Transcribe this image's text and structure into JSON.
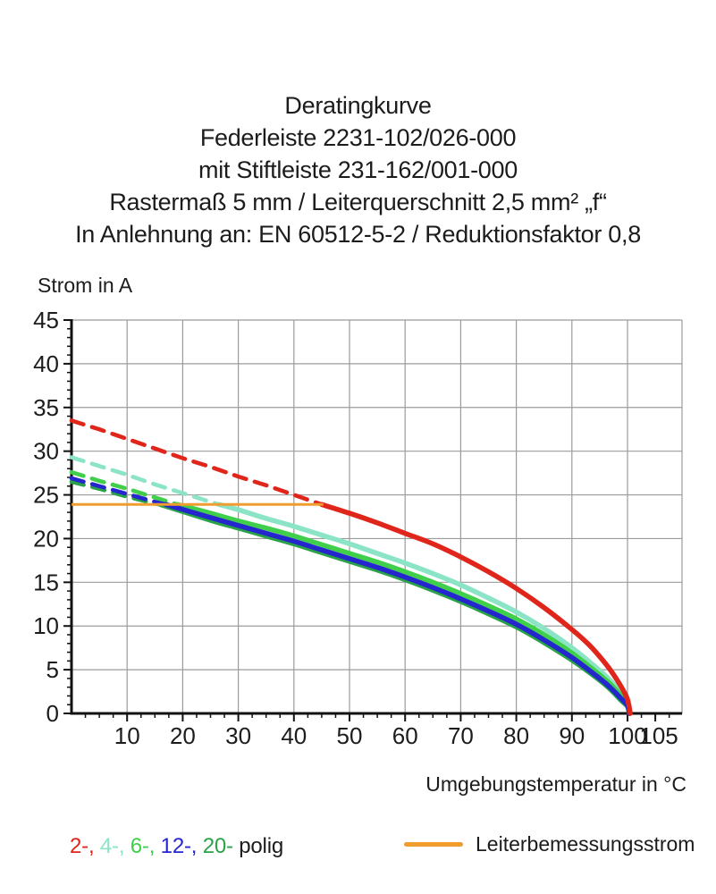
{
  "header": {
    "lines": [
      "Deratingkurve",
      "Federleiste 2231-102/026-000",
      "mit Stiftleiste 231-162/001-000",
      "Rastermaß 5 mm / Leiterquerschnitt 2,5 mm² „f“",
      "In Anlehnung an: EN 60512-5-2 / Reduktionsfaktor 0,8"
    ]
  },
  "chart_data": {
    "type": "line",
    "title": "Deratingkurve",
    "xlabel": "Umgebungstemperatur in °C",
    "ylabel": "Strom in A",
    "xlim": [
      0,
      110
    ],
    "ylim": [
      0,
      45
    ],
    "x_ticks": [
      10,
      20,
      30,
      40,
      50,
      60,
      70,
      80,
      90,
      100,
      105
    ],
    "y_ticks": [
      0,
      5,
      10,
      15,
      20,
      25,
      30,
      35,
      40,
      45
    ],
    "x_minor_step": 2.5,
    "y_minor_step": 1,
    "x_gridlines": [
      10,
      20,
      30,
      40,
      50,
      60,
      70,
      80,
      90,
      100
    ],
    "y_gridlines": [
      5,
      10,
      15,
      20,
      25,
      30,
      35,
      40,
      45
    ],
    "grid_color": "#9b9b9b",
    "axis_color": "#111111",
    "series": [
      {
        "name": "4-polig",
        "color": "#8ce4c7",
        "dash_until": 26.5,
        "points": [
          [
            0,
            29.3
          ],
          [
            5,
            28.3
          ],
          [
            10,
            27.3
          ],
          [
            15,
            26.2
          ],
          [
            20,
            25.2
          ],
          [
            26.5,
            23.9
          ],
          [
            30,
            23.3
          ],
          [
            35,
            22.3
          ],
          [
            40,
            21.4
          ],
          [
            45,
            20.4
          ],
          [
            50,
            19.4
          ],
          [
            55,
            18.3
          ],
          [
            60,
            17.2
          ],
          [
            65,
            16.0
          ],
          [
            70,
            14.7
          ],
          [
            75,
            13.2
          ],
          [
            80,
            11.6
          ],
          [
            85,
            9.7
          ],
          [
            90,
            7.5
          ],
          [
            95,
            4.9
          ],
          [
            97,
            3.7
          ],
          [
            99,
            2.2
          ],
          [
            100,
            1.3
          ],
          [
            100.4,
            0
          ]
        ]
      },
      {
        "name": "6-polig",
        "color": "#3fcf4a",
        "dash_until": 19,
        "points": [
          [
            0,
            27.6
          ],
          [
            5,
            26.6
          ],
          [
            10,
            25.7
          ],
          [
            15,
            24.7
          ],
          [
            19,
            23.9
          ],
          [
            25,
            22.9
          ],
          [
            30,
            22.0
          ],
          [
            35,
            21.2
          ],
          [
            40,
            20.3
          ],
          [
            45,
            19.3
          ],
          [
            50,
            18.3
          ],
          [
            55,
            17.3
          ],
          [
            60,
            16.2
          ],
          [
            65,
            15.0
          ],
          [
            70,
            13.7
          ],
          [
            75,
            12.3
          ],
          [
            80,
            10.8
          ],
          [
            85,
            9.0
          ],
          [
            90,
            6.9
          ],
          [
            95,
            4.4
          ],
          [
            97,
            3.3
          ],
          [
            99,
            1.9
          ],
          [
            100,
            1.1
          ],
          [
            100.4,
            0
          ]
        ]
      },
      {
        "name": "20-polig",
        "color": "#2aa348",
        "dash_until": 16,
        "points": [
          [
            0,
            26.5
          ],
          [
            5,
            25.7
          ],
          [
            10,
            24.8
          ],
          [
            15,
            24.0
          ],
          [
            16,
            23.9
          ],
          [
            25,
            22.1
          ],
          [
            30,
            21.2
          ],
          [
            35,
            20.3
          ],
          [
            40,
            19.4
          ],
          [
            45,
            18.4
          ],
          [
            50,
            17.4
          ],
          [
            55,
            16.4
          ],
          [
            60,
            15.3
          ],
          [
            65,
            14.1
          ],
          [
            70,
            12.8
          ],
          [
            75,
            11.4
          ],
          [
            80,
            9.9
          ],
          [
            85,
            8.1
          ],
          [
            90,
            6.1
          ],
          [
            95,
            3.8
          ],
          [
            97,
            2.7
          ],
          [
            99,
            1.4
          ],
          [
            100,
            0.8
          ],
          [
            100.3,
            0
          ]
        ]
      },
      {
        "name": "12-polig",
        "color": "#2526cd",
        "dash_until": 17,
        "points": [
          [
            0,
            26.9
          ],
          [
            5,
            26.0
          ],
          [
            10,
            25.1
          ],
          [
            15,
            24.2
          ],
          [
            17,
            23.9
          ],
          [
            25,
            22.4
          ],
          [
            30,
            21.5
          ],
          [
            35,
            20.6
          ],
          [
            40,
            19.7
          ],
          [
            45,
            18.7
          ],
          [
            50,
            17.7
          ],
          [
            55,
            16.7
          ],
          [
            60,
            15.6
          ],
          [
            65,
            14.4
          ],
          [
            70,
            13.1
          ],
          [
            75,
            11.7
          ],
          [
            80,
            10.2
          ],
          [
            85,
            8.4
          ],
          [
            90,
            6.4
          ],
          [
            95,
            4.0
          ],
          [
            97,
            2.9
          ],
          [
            99,
            1.6
          ],
          [
            100,
            0.9
          ],
          [
            100.35,
            0
          ]
        ]
      },
      {
        "name": "2-polig",
        "color": "#e0251b",
        "dash_until": 45,
        "points": [
          [
            0,
            33.5
          ],
          [
            5,
            32.5
          ],
          [
            10,
            31.4
          ],
          [
            15,
            30.3
          ],
          [
            20,
            29.2
          ],
          [
            25,
            28.2
          ],
          [
            30,
            27.1
          ],
          [
            35,
            26.1
          ],
          [
            40,
            25.0
          ],
          [
            45,
            23.9
          ],
          [
            50,
            22.9
          ],
          [
            55,
            21.8
          ],
          [
            60,
            20.6
          ],
          [
            65,
            19.4
          ],
          [
            70,
            17.9
          ],
          [
            75,
            16.2
          ],
          [
            80,
            14.3
          ],
          [
            85,
            12.1
          ],
          [
            90,
            9.6
          ],
          [
            93,
            7.9
          ],
          [
            95,
            6.5
          ],
          [
            97,
            4.9
          ],
          [
            99,
            2.9
          ],
          [
            100,
            1.6
          ],
          [
            100.5,
            0
          ]
        ]
      }
    ],
    "reference_line": {
      "label": "Leiterbemessungsstrom",
      "color": "#f09d2e",
      "value": 23.9,
      "x_start": 0,
      "x_end": 45.3
    }
  },
  "legend": {
    "poles": [
      {
        "label": "2-,",
        "color": "#e0251b"
      },
      {
        "label": "4-,",
        "color": "#8ce4c7"
      },
      {
        "label": "6-,",
        "color": "#3fcf4a"
      },
      {
        "label": "12-,",
        "color": "#2526cd"
      },
      {
        "label": "20-",
        "color": "#2aa348"
      }
    ],
    "suffix": "polig",
    "reference": {
      "label": "Leiterbemessungsstrom",
      "color": "#f09d2e"
    }
  }
}
